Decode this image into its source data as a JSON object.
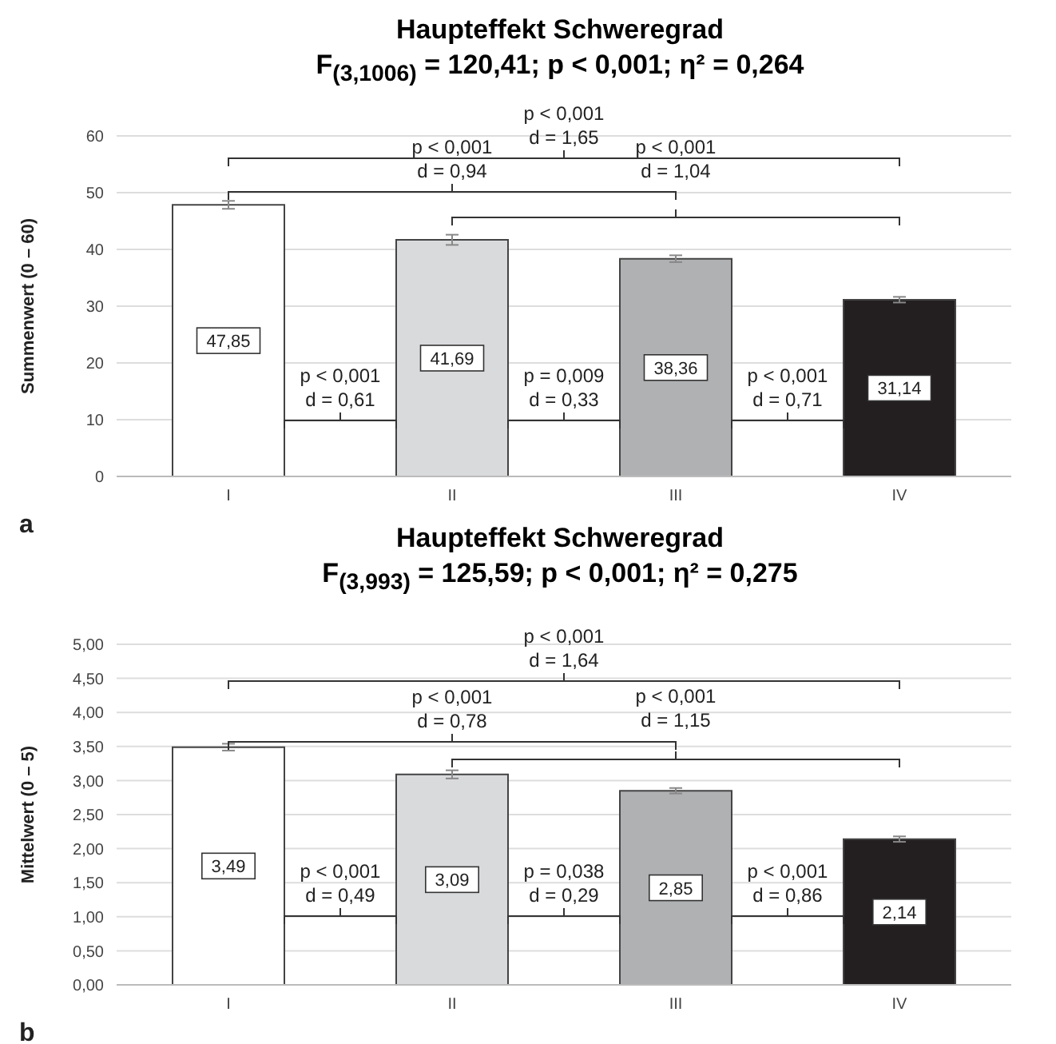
{
  "chart_data": [
    {
      "type": "bar",
      "title": "Haupteffekt Schweregrad",
      "subtitle": "F$_{(3,1006)}$ = 120,41; p < 0,001; η² = 0,264",
      "ylabel": "Summenwert (0 – 60)",
      "categories": [
        "I",
        "II",
        "III",
        "IV"
      ],
      "values": [
        47.85,
        41.69,
        38.36,
        31.14
      ],
      "colors": [
        "#ffffff",
        "#d9dadc",
        "#b0b1b3",
        "#231f20"
      ],
      "errors": [
        0.7,
        0.9,
        0.6,
        0.5
      ],
      "value_labels": [
        "47,85",
        "41,69",
        "38,36",
        "31,14"
      ],
      "ylim": [
        0,
        60
      ],
      "yticks": [
        0,
        10,
        20,
        30,
        40,
        50,
        60
      ],
      "grid": "y",
      "legend": false,
      "annotations": [
        "p < 0,001\nd = 1,65",
        "p < 0,001\nd = 0,94",
        "p < 0,001\nd = 1,04",
        "p < 0,001\nd = 0,61",
        "p = 0,009\nd = 0,33",
        "p < 0,001\nd = 0,71",
        "a"
      ]
    },
    {
      "type": "bar",
      "title": "Haupteffekt Schweregrad",
      "subtitle": "F$_{(3,993)}$ = 125,59; p < 0,001; η² = 0,275",
      "ylabel": "Mittelwert (0 – 5)",
      "categories": [
        "I",
        "II",
        "III",
        "IV"
      ],
      "values": [
        3.49,
        3.09,
        2.85,
        2.14
      ],
      "colors": [
        "#ffffff",
        "#d9dadc",
        "#b0b1b3",
        "#231f20"
      ],
      "errors": [
        0.05,
        0.06,
        0.04,
        0.04
      ],
      "value_labels": [
        "3,49",
        "3,09",
        "2,85",
        "2,14"
      ],
      "ylim": [
        0,
        5
      ],
      "yticks": [
        {
          "value": 0,
          "label": "0,00"
        },
        {
          "value": 0.5,
          "label": "0,50"
        },
        {
          "value": 1,
          "label": "1,00"
        },
        {
          "value": 1.5,
          "label": "1,50"
        },
        {
          "value": 2,
          "label": "2,00"
        },
        {
          "value": 2.5,
          "label": "2,50"
        },
        {
          "value": 3,
          "label": "3,00"
        },
        {
          "value": 3.5,
          "label": "3,50"
        },
        {
          "value": 4,
          "label": "4,00"
        },
        {
          "value": 4.5,
          "label": "4,50"
        },
        {
          "value": 5,
          "label": "5,00"
        }
      ],
      "grid": "y",
      "legend": false,
      "annotations": [
        "p < 0,001\nd = 1,64",
        "p < 0,001\nd = 0,78",
        "p < 0,001\nd = 1,15",
        "p < 0,001\nd = 0,49",
        "p = 0,038\nd = 0,29",
        "p < 0,001\nd = 0,86",
        "b"
      ]
    }
  ]
}
